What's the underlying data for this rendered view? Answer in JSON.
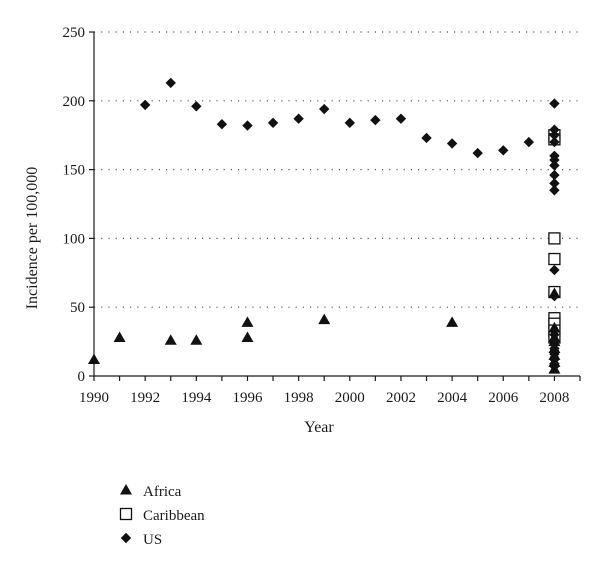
{
  "chart_data": {
    "type": "scatter",
    "title": "",
    "xlabel": "Year",
    "ylabel": "Incidence per 100,000",
    "xlim": [
      1990,
      2009
    ],
    "ylim": [
      0,
      250
    ],
    "x_ticks": [
      "1990",
      "1992",
      "1994",
      "1996",
      "1998",
      "2000",
      "2002",
      "2004",
      "2006",
      "2008"
    ],
    "y_ticks": [
      "0",
      "50",
      "100",
      "150",
      "200",
      "250"
    ],
    "grid": "horizontal-dotted",
    "legend_position": "bottom-left",
    "series": [
      {
        "name": "Africa",
        "marker": "triangle",
        "color": "#111111",
        "points": [
          [
            1990,
            12
          ],
          [
            1991,
            28
          ],
          [
            1993,
            26
          ],
          [
            1994,
            26
          ],
          [
            1996,
            39
          ],
          [
            1996,
            28
          ],
          [
            1999,
            41
          ],
          [
            2004,
            39
          ],
          [
            2008,
            60
          ],
          [
            2008,
            35
          ],
          [
            2008,
            28
          ],
          [
            2008,
            25
          ],
          [
            2008,
            20
          ],
          [
            2008,
            15
          ],
          [
            2008,
            10
          ],
          [
            2008,
            5
          ]
        ]
      },
      {
        "name": "Caribbean",
        "marker": "square-open",
        "color": "#111111",
        "points": [
          [
            2008,
            175
          ],
          [
            2008,
            172
          ],
          [
            2008,
            100
          ],
          [
            2008,
            85
          ],
          [
            2008,
            61
          ],
          [
            2008,
            42
          ],
          [
            2008,
            38
          ],
          [
            2008,
            33
          ],
          [
            2008,
            28
          ]
        ]
      },
      {
        "name": "US",
        "marker": "diamond",
        "color": "#111111",
        "points": [
          [
            1992,
            197
          ],
          [
            1993,
            213
          ],
          [
            1994,
            196
          ],
          [
            1995,
            183
          ],
          [
            1996,
            182
          ],
          [
            1997,
            184
          ],
          [
            1998,
            187
          ],
          [
            1999,
            194
          ],
          [
            2000,
            184
          ],
          [
            2001,
            186
          ],
          [
            2002,
            187
          ],
          [
            2003,
            173
          ],
          [
            2004,
            169
          ],
          [
            2005,
            162
          ],
          [
            2006,
            164
          ],
          [
            2007,
            170
          ],
          [
            2008,
            198
          ],
          [
            2008,
            179
          ],
          [
            2008,
            175
          ],
          [
            2008,
            170
          ],
          [
            2008,
            160
          ],
          [
            2008,
            157
          ],
          [
            2008,
            153
          ],
          [
            2008,
            146
          ],
          [
            2008,
            140
          ],
          [
            2008,
            135
          ],
          [
            2008,
            77
          ],
          [
            2008,
            58
          ],
          [
            2008,
            30
          ],
          [
            2008,
            25
          ],
          [
            2008,
            20
          ],
          [
            2008,
            16
          ],
          [
            2008,
            12
          ],
          [
            2008,
            9
          ],
          [
            2008,
            7
          ]
        ]
      }
    ]
  }
}
